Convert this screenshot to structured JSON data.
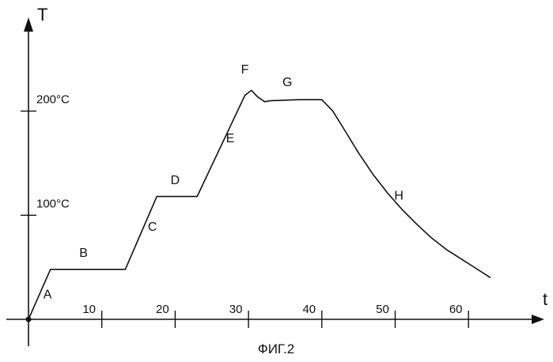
{
  "chart_data": {
    "type": "line",
    "caption": "ФИГ.2",
    "xlabel": "t",
    "ylabel": "T",
    "xlim": [
      0,
      70
    ],
    "ylim": [
      0,
      290
    ],
    "x_ticks": [
      10,
      20,
      30,
      40,
      50,
      60
    ],
    "y_ticks": [
      {
        "value": 100,
        "label": "100°C"
      },
      {
        "value": 200,
        "label": "200°C"
      }
    ],
    "grid": false,
    "series": [
      {
        "points": [
          [
            0,
            0
          ],
          [
            3,
            48
          ],
          [
            13.2,
            48
          ],
          [
            17.5,
            118
          ],
          [
            23,
            118
          ],
          [
            29.5,
            215
          ],
          [
            30.4,
            220
          ],
          [
            31.2,
            214
          ],
          [
            32.2,
            209
          ],
          [
            33,
            210
          ],
          [
            37,
            211
          ],
          [
            40,
            211
          ],
          [
            41.5,
            200
          ],
          [
            43,
            183
          ],
          [
            45,
            160
          ],
          [
            47,
            139
          ],
          [
            49,
            121
          ],
          [
            51,
            105
          ],
          [
            53,
            91
          ],
          [
            55,
            78
          ],
          [
            57,
            67
          ],
          [
            59,
            58
          ],
          [
            61,
            49
          ],
          [
            63,
            40
          ]
        ]
      }
    ],
    "annotations": [
      {
        "text": "A",
        "x": 2.6,
        "y": 20
      },
      {
        "text": "B",
        "x": 7.5,
        "y": 60
      },
      {
        "text": "C",
        "x": 16.9,
        "y": 85
      },
      {
        "text": "D",
        "x": 20,
        "y": 130
      },
      {
        "text": "E",
        "x": 27.5,
        "y": 170
      },
      {
        "text": "F",
        "x": 29.5,
        "y": 236
      },
      {
        "text": "G",
        "x": 35.3,
        "y": 224
      },
      {
        "text": "H",
        "x": 50.5,
        "y": 115
      }
    ]
  }
}
